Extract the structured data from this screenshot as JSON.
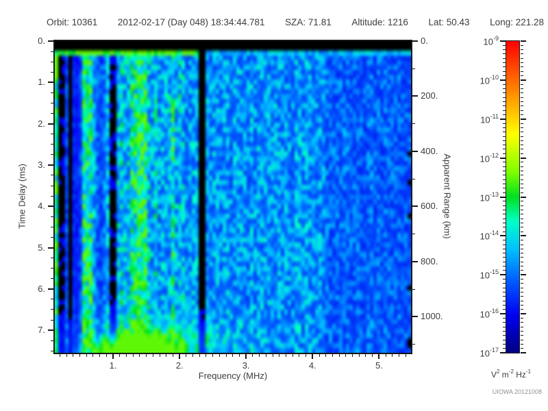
{
  "header": {
    "fields": [
      {
        "label": "Orbit:",
        "value": "10361"
      },
      {
        "label": "",
        "value": "2012-02-17 (Day 048) 18:34:44.781"
      },
      {
        "label": "SZA:",
        "value": "71.81"
      },
      {
        "label": "Altitude:",
        "value": "1216"
      },
      {
        "label": "Lat:",
        "value": "50.43"
      },
      {
        "label": "Long:",
        "value": "221.28"
      }
    ]
  },
  "chart_data": {
    "type": "heatmap",
    "xlabel": "Frequency (MHz)",
    "ylabel": "Time Delay (ms)",
    "y2label": "Apparent Range (km)",
    "xlim": [
      0.124,
      5.48
    ],
    "ylim": [
      0,
      7.545
    ],
    "y2lim": [
      0,
      1131
    ],
    "x_major_ticks": [
      1,
      2,
      3,
      4,
      5
    ],
    "x_tick_labels": [
      "1.",
      "2.",
      "3.",
      "4.",
      "5."
    ],
    "x_minor_step": 0.1,
    "y_major_ticks": [
      0,
      1,
      2,
      3,
      4,
      5,
      6,
      7
    ],
    "y_tick_labels": [
      "0.",
      "1.",
      "2.",
      "3.",
      "4.",
      "5.",
      "6.",
      "7."
    ],
    "y_minor_step": 0.25,
    "y2_major_ticks": [
      0,
      200,
      400,
      600,
      800,
      1000
    ],
    "y2_tick_labels": [
      "0.",
      "200.",
      "400.",
      "600.",
      "800.",
      "1000."
    ],
    "y2_minor_step": 100,
    "grid": false,
    "colorbar": {
      "scale": "log",
      "exponents": [
        -9,
        -10,
        -11,
        -12,
        -13,
        -14,
        -15,
        -16,
        -17
      ],
      "minor_per_decade": 8,
      "units": [
        [
          "V",
          "2"
        ],
        [
          "m",
          "-2"
        ],
        [
          "Hz",
          "-1"
        ]
      ],
      "gradient": [
        {
          "pos": 0.0,
          "color": "#ff0000"
        },
        {
          "pos": 0.15,
          "color": "#ff7f00"
        },
        {
          "pos": 0.3,
          "color": "#ffff00"
        },
        {
          "pos": 0.42,
          "color": "#7fff00"
        },
        {
          "pos": 0.5,
          "color": "#00e020"
        },
        {
          "pos": 0.58,
          "color": "#00ffc8"
        },
        {
          "pos": 0.67,
          "color": "#00bfff"
        },
        {
          "pos": 0.76,
          "color": "#0064ff"
        },
        {
          "pos": 0.88,
          "color": "#0000f0"
        },
        {
          "pos": 1.0,
          "color": "#000080"
        }
      ]
    },
    "heatmap": {
      "seed": 20121008,
      "grid_cols": 104,
      "grid_rows": 65,
      "black_top_ms": 0.232,
      "surface_line_ms": 0.29,
      "dark_gap_mhz": 2.36,
      "dark_band_mhz": [
        0.27,
        0.52
      ],
      "streak_region_max_mhz": 1.1,
      "mid_region_max_mhz": 2.28,
      "quiet_region_min_mhz": 4.2,
      "bright_stripes": [
        {
          "f": 1.43,
          "gain": 1.55,
          "halfwidth": 0.06
        },
        {
          "f": 1.32,
          "gain": 1.25,
          "halfwidth": 0.05
        },
        {
          "f": 1.9,
          "gain": 1.2,
          "halfwidth": 0.05
        }
      ],
      "blobs": [
        {
          "f": 1.45,
          "t": 7.42,
          "sf": 0.38,
          "st": 0.22,
          "amp": 1.0
        },
        {
          "f": 1.05,
          "t": 7.5,
          "sf": 0.22,
          "st": 0.15,
          "amp": 0.5
        },
        {
          "f": 1.55,
          "t": 7.3,
          "sf": 0.85,
          "st": 0.45,
          "amp": 0.3
        }
      ]
    },
    "credit": "UIOWA 20121008",
    "text_color": "#3c3c3c",
    "tick_color": "#161616"
  }
}
